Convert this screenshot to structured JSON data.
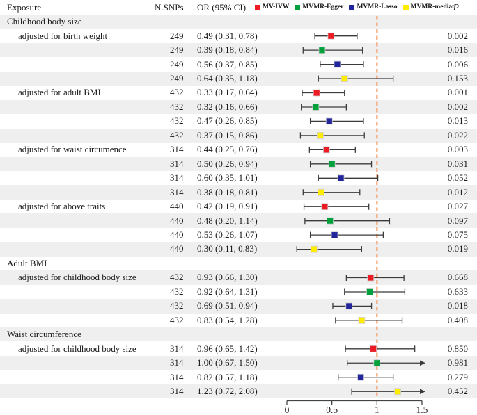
{
  "header": {
    "exposure": "Exposure",
    "n_snps": "N.SNPs",
    "or_ci": "OR (95% CI)",
    "p": "P"
  },
  "legend": {
    "items": [
      {
        "label": "MV-IVW",
        "color": "#ed1c24"
      },
      {
        "label": "MVMR-Egger",
        "color": "#00a03c"
      },
      {
        "label": "MVMR-Lasso",
        "color": "#23269b"
      },
      {
        "label": "MVMR-median",
        "color": "#ffec00"
      }
    ]
  },
  "colors": {
    "MV-IVW": "#ed1c24",
    "MVMR-Egger": "#00a03c",
    "MVMR-Lasso": "#23269b",
    "MVMR-median": "#ffec00",
    "reference_line": "#f2a06f",
    "stripe": "#efefef",
    "bar": "#3b3b3b",
    "axis": "#444444"
  },
  "chart_data": {
    "type": "forest",
    "xlim": [
      0,
      1.5
    ],
    "x_ticks": [
      0,
      0.5,
      1,
      1.5
    ],
    "x_tick_labels": [
      "0",
      "0.5",
      "1",
      "1.5"
    ],
    "reference_line": 1,
    "grid": false,
    "legend_position": "top",
    "rows": [
      {
        "type": "group",
        "label": "Childhood body size"
      },
      {
        "type": "data",
        "label": "adjusted for birth weight",
        "method": "MV-IVW",
        "n_snps": "249",
        "or": 0.49,
        "ci_low": 0.31,
        "ci_high": 0.78,
        "or_ci": "0.49 (0.31, 0.78)",
        "p": "0.002"
      },
      {
        "type": "data",
        "label": "",
        "method": "MVMR-Egger",
        "n_snps": "249",
        "or": 0.39,
        "ci_low": 0.18,
        "ci_high": 0.84,
        "or_ci": "0.39 (0.18, 0.84)",
        "p": "0.016"
      },
      {
        "type": "data",
        "label": "",
        "method": "MVMR-Lasso",
        "n_snps": "249",
        "or": 0.56,
        "ci_low": 0.37,
        "ci_high": 0.85,
        "or_ci": "0.56 (0.37, 0.85)",
        "p": "0.006"
      },
      {
        "type": "data",
        "label": "",
        "method": "MVMR-median",
        "n_snps": "249",
        "or": 0.64,
        "ci_low": 0.35,
        "ci_high": 1.18,
        "or_ci": "0.64 (0.35, 1.18)",
        "p": "0.153"
      },
      {
        "type": "data",
        "label": "adjusted for adult BMI",
        "method": "MV-IVW",
        "n_snps": "432",
        "or": 0.33,
        "ci_low": 0.17,
        "ci_high": 0.64,
        "or_ci": "0.33 (0.17, 0.64)",
        "p": "0.001"
      },
      {
        "type": "data",
        "label": "",
        "method": "MVMR-Egger",
        "n_snps": "432",
        "or": 0.32,
        "ci_low": 0.16,
        "ci_high": 0.66,
        "or_ci": "0.32 (0.16, 0.66)",
        "p": "0.002"
      },
      {
        "type": "data",
        "label": "",
        "method": "MVMR-Lasso",
        "n_snps": "432",
        "or": 0.47,
        "ci_low": 0.26,
        "ci_high": 0.85,
        "or_ci": "0.47 (0.26, 0.85)",
        "p": "0.013"
      },
      {
        "type": "data",
        "label": "",
        "method": "MVMR-median",
        "n_snps": "432",
        "or": 0.37,
        "ci_low": 0.15,
        "ci_high": 0.86,
        "or_ci": "0.37 (0.15, 0.86)",
        "p": "0.022"
      },
      {
        "type": "data",
        "label": "adjusted for waist circumence",
        "method": "MV-IVW",
        "n_snps": "314",
        "or": 0.44,
        "ci_low": 0.25,
        "ci_high": 0.76,
        "or_ci": "0.44 (0.25, 0.76)",
        "p": "0.003"
      },
      {
        "type": "data",
        "label": "",
        "method": "MVMR-Egger",
        "n_snps": "314",
        "or": 0.5,
        "ci_low": 0.26,
        "ci_high": 0.94,
        "or_ci": "0.50 (0.26, 0.94)",
        "p": "0.031"
      },
      {
        "type": "data",
        "label": "",
        "method": "MVMR-Lasso",
        "n_snps": "314",
        "or": 0.6,
        "ci_low": 0.35,
        "ci_high": 1.01,
        "or_ci": "0.60 (0.35, 1.01)",
        "p": "0.052"
      },
      {
        "type": "data",
        "label": "",
        "method": "MVMR-median",
        "n_snps": "314",
        "or": 0.38,
        "ci_low": 0.18,
        "ci_high": 0.81,
        "or_ci": "0.38 (0.18, 0.81)",
        "p": "0.012"
      },
      {
        "type": "data",
        "label": "adjusted for above traits",
        "method": "MV-IVW",
        "n_snps": "440",
        "or": 0.42,
        "ci_low": 0.19,
        "ci_high": 0.91,
        "or_ci": "0.42 (0.19, 0.91)",
        "p": "0.027"
      },
      {
        "type": "data",
        "label": "",
        "method": "MVMR-Egger",
        "n_snps": "440",
        "or": 0.48,
        "ci_low": 0.2,
        "ci_high": 1.14,
        "or_ci": "0.48 (0.20, 1.14)",
        "p": "0.097"
      },
      {
        "type": "data",
        "label": "",
        "method": "MVMR-Lasso",
        "n_snps": "440",
        "or": 0.53,
        "ci_low": 0.26,
        "ci_high": 1.07,
        "or_ci": "0.53 (0.26, 1.07)",
        "p": "0.075"
      },
      {
        "type": "data",
        "label": "",
        "method": "MVMR-median",
        "n_snps": "440",
        "or": 0.3,
        "ci_low": 0.11,
        "ci_high": 0.83,
        "or_ci": "0.30 (0.11, 0.83)",
        "p": "0.019"
      },
      {
        "type": "group",
        "label": "Adult BMI"
      },
      {
        "type": "data",
        "label": "adjusted for childhood body size",
        "method": "MV-IVW",
        "n_snps": "432",
        "or": 0.93,
        "ci_low": 0.66,
        "ci_high": 1.3,
        "or_ci": "0.93 (0.66, 1.30)",
        "p": "0.668"
      },
      {
        "type": "data",
        "label": "",
        "method": "MVMR-Egger",
        "n_snps": "432",
        "or": 0.92,
        "ci_low": 0.64,
        "ci_high": 1.31,
        "or_ci": "0.92 (0.64, 1.31)",
        "p": "0.633"
      },
      {
        "type": "data",
        "label": "",
        "method": "MVMR-Lasso",
        "n_snps": "432",
        "or": 0.69,
        "ci_low": 0.51,
        "ci_high": 0.94,
        "or_ci": "0.69 (0.51, 0.94)",
        "p": "0.018"
      },
      {
        "type": "data",
        "label": "",
        "method": "MVMR-median",
        "n_snps": "432",
        "or": 0.83,
        "ci_low": 0.54,
        "ci_high": 1.28,
        "or_ci": "0.83 (0.54, 1.28)",
        "p": "0.408"
      },
      {
        "type": "group",
        "label": "Waist circumference"
      },
      {
        "type": "data",
        "label": "adjusted for childhood body size",
        "method": "MV-IVW",
        "n_snps": "314",
        "or": 0.96,
        "ci_low": 0.65,
        "ci_high": 1.42,
        "or_ci": "0.96 (0.65, 1.42)",
        "p": "0.850"
      },
      {
        "type": "data",
        "label": "",
        "method": "MVMR-Egger",
        "n_snps": "314",
        "or": 1.0,
        "ci_low": 0.67,
        "ci_high": 1.5,
        "or_ci": "1.00 (0.67, 1.50)",
        "p": "0.981"
      },
      {
        "type": "data",
        "label": "",
        "method": "MVMR-Lasso",
        "n_snps": "314",
        "or": 0.82,
        "ci_low": 0.57,
        "ci_high": 1.18,
        "or_ci": "0.82 (0.57, 1.18)",
        "p": "0.279"
      },
      {
        "type": "data",
        "label": "",
        "method": "MVMR-median",
        "n_snps": "314",
        "or": 1.23,
        "ci_low": 0.72,
        "ci_high": 2.08,
        "or_ci": "1.23 (0.72, 2.08)",
        "p": "0.452"
      }
    ]
  }
}
